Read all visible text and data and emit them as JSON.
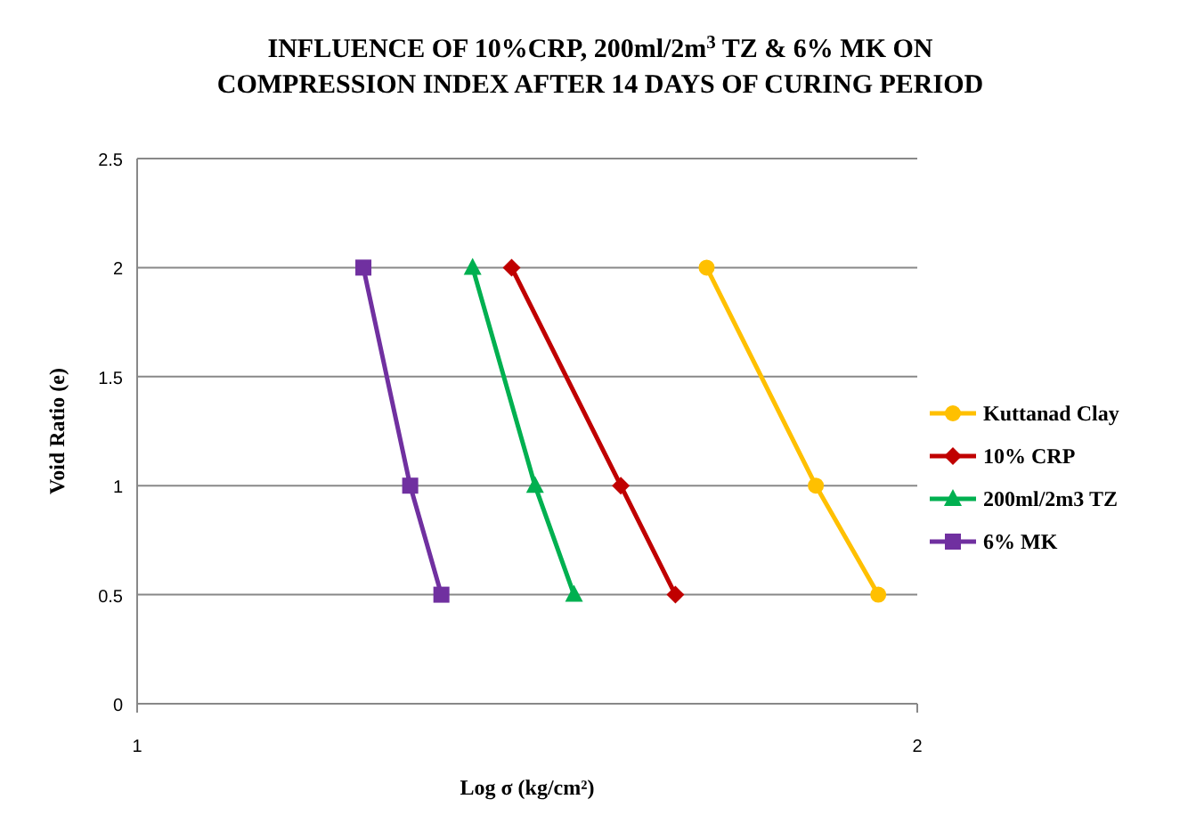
{
  "chart_data": {
    "type": "line",
    "title": "INFLUENCE OF 10%CRP, 200ml/2m$^{3}$ TZ & 6% MK ON COMPRESSION INDEX AFTER 14 DAYS OF CURING PERIOD",
    "xlabel": "Log σ (kg/cm²)",
    "ylabel": "Void Ratio (e)",
    "xlim": [
      1,
      2
    ],
    "xticks": [
      1,
      2
    ],
    "ylim": [
      0,
      2.5
    ],
    "yticks": [
      0,
      0.5,
      1,
      1.5,
      2,
      2.5
    ],
    "grid": "y",
    "legend": "right",
    "series": [
      {
        "name": "Kuttanad Clay",
        "color": "#ffc000",
        "marker": "circle",
        "x": [
          1.73,
          1.87,
          1.95
        ],
        "values": [
          2,
          1,
          0.5
        ]
      },
      {
        "name": "10% CRP",
        "color": "#c00000",
        "marker": "diamond",
        "x": [
          1.48,
          1.62,
          1.69
        ],
        "values": [
          2,
          1,
          0.5
        ]
      },
      {
        "name": "200ml/2m3 TZ",
        "color": "#00b050",
        "marker": "triangle",
        "x": [
          1.43,
          1.51,
          1.56
        ],
        "values": [
          2,
          1,
          0.5
        ]
      },
      {
        "name": "6% MK",
        "color": "#7030a0",
        "marker": "square",
        "x": [
          1.29,
          1.35,
          1.39
        ],
        "values": [
          2,
          1,
          0.5
        ]
      }
    ]
  }
}
